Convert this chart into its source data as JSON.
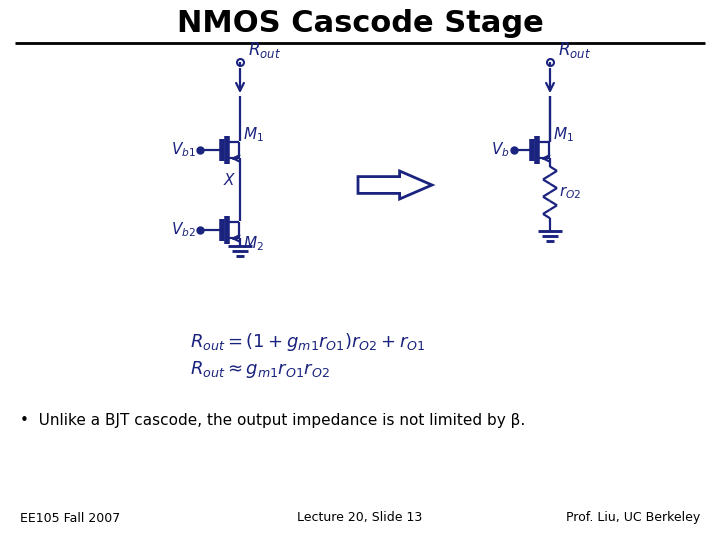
{
  "title": "NMOS Cascode Stage",
  "title_fontsize": 22,
  "title_fontweight": "bold",
  "title_color": "#000000",
  "circuit_color": "#1a237e",
  "bg_color": "#ffffff",
  "bullet_text": "Unlike a BJT cascode, the output impedance is not limited by β.",
  "footer_left": "EE105 Fall 2007",
  "footer_center": "Lecture 20, Slide 13",
  "footer_right": "Prof. Liu, UC Berkeley",
  "footer_fontsize": 9,
  "lw": 1.6
}
